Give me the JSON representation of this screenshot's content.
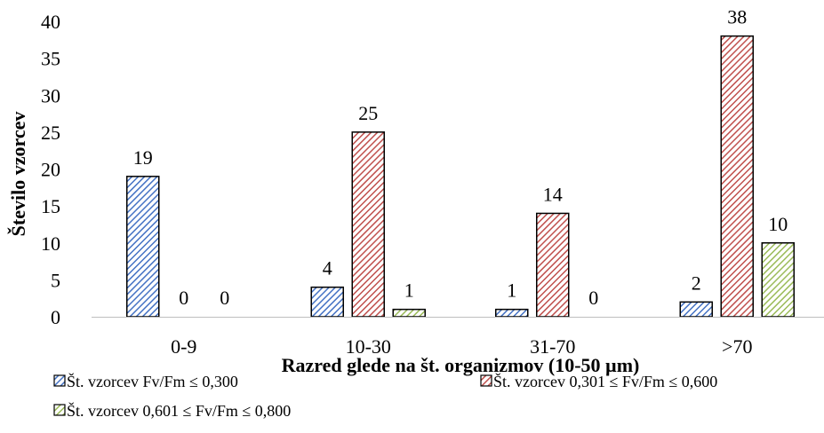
{
  "chart_data": {
    "type": "bar",
    "title": "",
    "xlabel": "Razred glede na št. organizmov (10-50 µm)",
    "ylabel": "Število vzorcev",
    "categories": [
      "0-9",
      "10-30",
      "31-70",
      ">70"
    ],
    "ylim": [
      0,
      40
    ],
    "yticks": [
      0,
      5,
      10,
      15,
      20,
      25,
      30,
      35,
      40
    ],
    "grid": false,
    "legend_position": "bottom",
    "series": [
      {
        "name": "Št. vzorcev Fv/Fm ≤ 0,300",
        "values": [
          19,
          4,
          1,
          2
        ],
        "color": "#4472C4",
        "pattern": "hatch-blue"
      },
      {
        "name": "Št. vzorcev 0,301 ≤ Fv/Fm ≤ 0,600",
        "values": [
          0,
          25,
          14,
          38
        ],
        "color": "#C0504D",
        "pattern": "hatch-red"
      },
      {
        "name": "Št. vzorcev 0,601 ≤ Fv/Fm ≤ 0,800",
        "values": [
          0,
          1,
          0,
          10
        ],
        "color": "#9BBB59",
        "pattern": "hatch-green"
      }
    ]
  }
}
